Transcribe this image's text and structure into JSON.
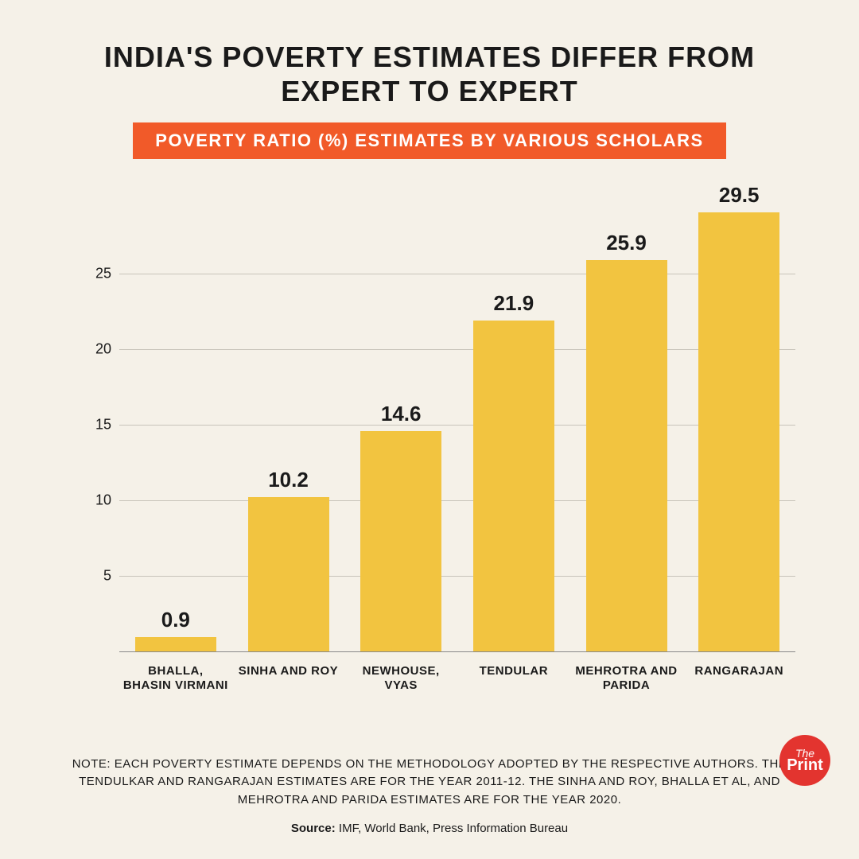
{
  "title": "INDIA'S POVERTY ESTIMATES DIFFER FROM EXPERT TO EXPERT",
  "subtitle": "POVERTY RATIO (%) ESTIMATES BY VARIOUS SCHOLARS",
  "chart": {
    "type": "bar",
    "categories": [
      "BHALLA, BHASIN VIRMANI",
      "SINHA AND ROY",
      "NEWHOUSE, VYAS",
      "TENDULAR",
      "MEHROTRA AND PARIDA",
      "RANGARAJAN"
    ],
    "values": [
      0.9,
      10.2,
      14.6,
      21.9,
      25.9,
      29.5
    ],
    "value_labels": [
      "0.9",
      "10.2",
      "14.6",
      "21.9",
      "25.9",
      "29.5"
    ],
    "bar_color": "#f2c440",
    "y_ticks": [
      5,
      10,
      15,
      20,
      25
    ],
    "ylim": [
      0,
      31
    ],
    "grid_color": "#c8c4ba",
    "background_color": "#f5f1e8",
    "bar_width_pct": 72,
    "value_fontsize": 26,
    "axis_fontsize": 18,
    "category_fontsize": 15
  },
  "note": "NOTE: EACH POVERTY ESTIMATE DEPENDS ON THE METHODOLOGY ADOPTED BY THE RESPECTIVE AUTHORS. THE TENDULKAR AND RANGARAJAN ESTIMATES ARE FOR THE YEAR 2011-12. THE SINHA AND ROY, BHALLA ET AL, AND MEHROTRA AND PARIDA ESTIMATES ARE FOR THE YEAR 2020.",
  "source_label": "Source:",
  "source_text": " IMF, World Bank, Press Information Bureau",
  "styles": {
    "title_fontsize": 36,
    "subtitle_fontsize": 22,
    "subtitle_bg": "#f15a29",
    "note_fontsize": 15,
    "source_fontsize": 15,
    "logo_bg": "#e3342f",
    "logo_line1": "The",
    "logo_line2": "Print"
  }
}
